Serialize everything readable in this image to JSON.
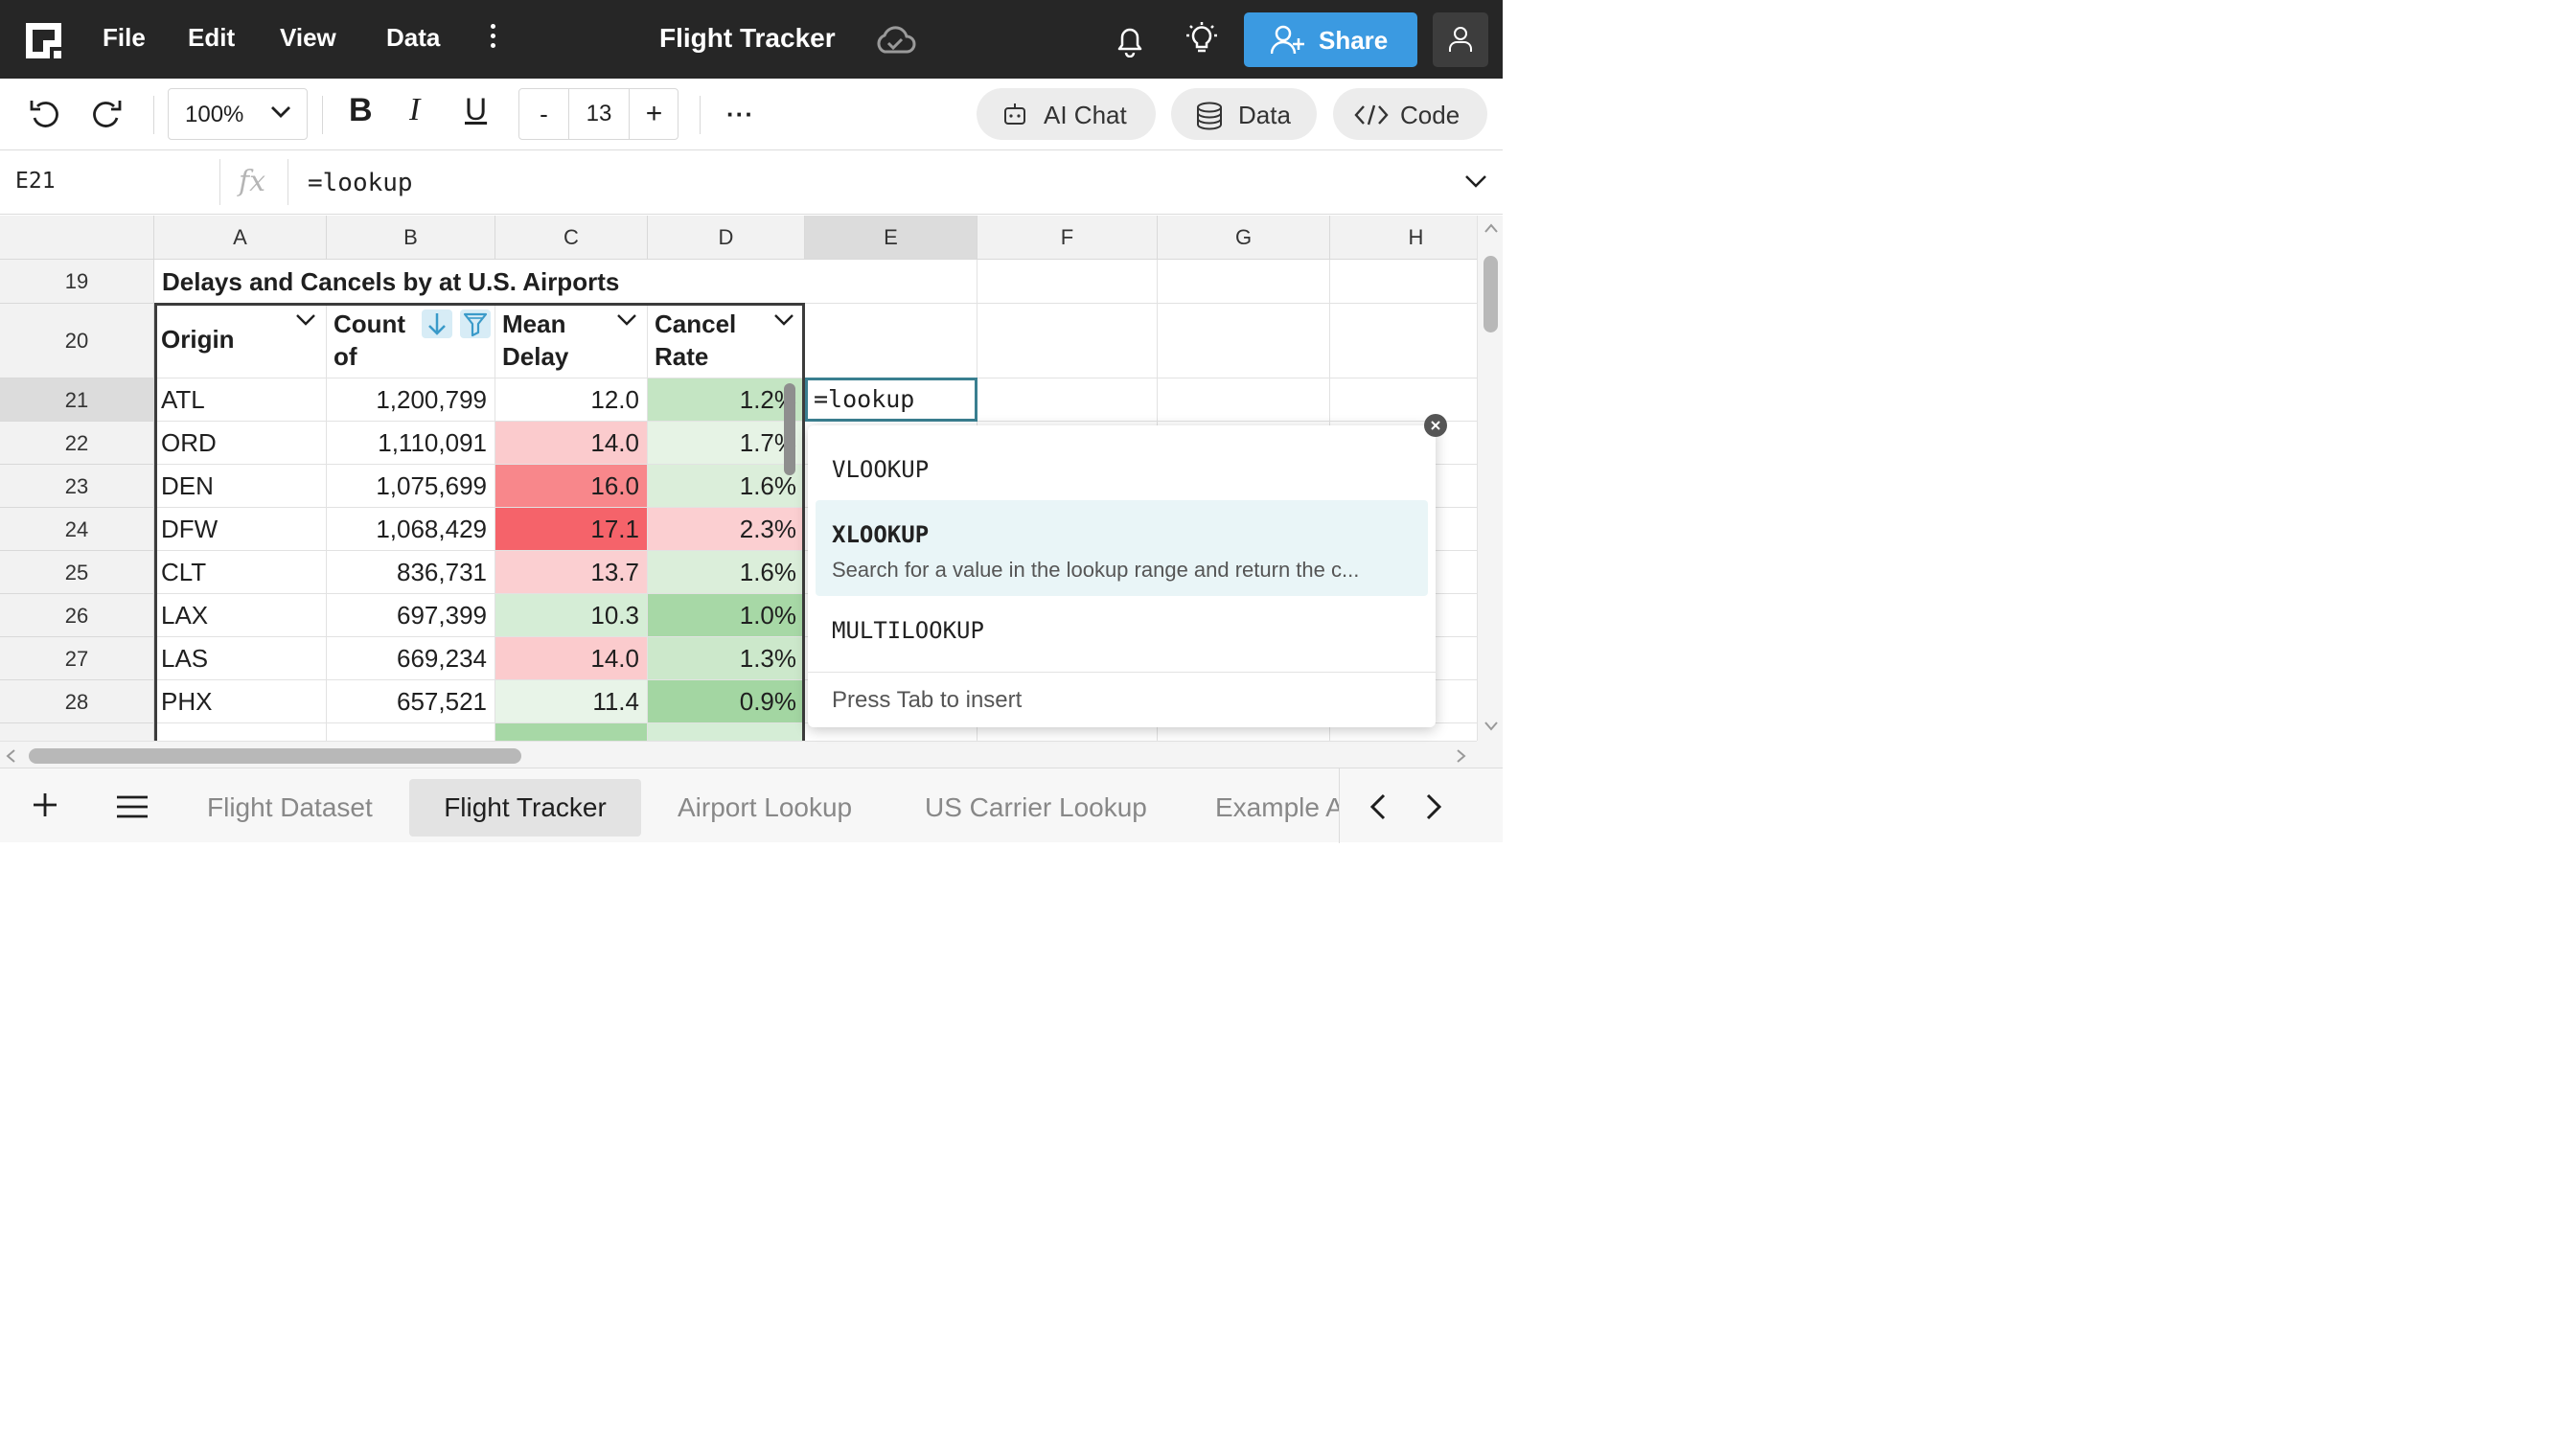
{
  "topbar": {
    "menu": [
      "File",
      "Edit",
      "View",
      "Data"
    ],
    "title": "Flight Tracker",
    "share_label": "Share"
  },
  "toolbar": {
    "zoom": "100%",
    "font_size": "13",
    "minus": "-",
    "plus": "+",
    "bold": "B",
    "italic": "I",
    "underline": "U",
    "more": "···",
    "ai_chat": "AI Chat",
    "data": "Data",
    "code": "Code"
  },
  "formula_bar": {
    "cell_ref": "E21",
    "fx": "fx",
    "formula": "=lookup"
  },
  "grid": {
    "columns": [
      "A",
      "B",
      "C",
      "D",
      "E",
      "F",
      "G",
      "H"
    ],
    "selected_column": "E",
    "selected_row": "21",
    "title_row": "19",
    "title": "Delays and Cancels by at U.S. Airports",
    "header_row": "20",
    "headers": [
      "Origin",
      "Count of",
      "Mean Delay",
      "Cancel Rate"
    ],
    "rows": [
      {
        "row": "21",
        "origin": "ATL",
        "count": "1,200,799",
        "delay": "12.0",
        "cancel": "1.2%"
      },
      {
        "row": "22",
        "origin": "ORD",
        "count": "1,110,091",
        "delay": "14.0",
        "cancel": "1.7%"
      },
      {
        "row": "23",
        "origin": "DEN",
        "count": "1,075,699",
        "delay": "16.0",
        "cancel": "1.6%"
      },
      {
        "row": "24",
        "origin": "DFW",
        "count": "1,068,429",
        "delay": "17.1",
        "cancel": "2.3%"
      },
      {
        "row": "25",
        "origin": "CLT",
        "count": "836,731",
        "delay": "13.7",
        "cancel": "1.6%"
      },
      {
        "row": "26",
        "origin": "LAX",
        "count": "697,399",
        "delay": "10.3",
        "cancel": "1.0%"
      },
      {
        "row": "27",
        "origin": "LAS",
        "count": "669,234",
        "delay": "14.0",
        "cancel": "1.3%"
      },
      {
        "row": "28",
        "origin": "PHX",
        "count": "657,521",
        "delay": "11.4",
        "cancel": "0.9%"
      }
    ],
    "active_cell_value": "=lookup",
    "colors": {
      "delay": [
        "#ffffff",
        "#fbcbcd",
        "#f8878b",
        "#f5636a",
        "#fbcfd1",
        "#d5edd6",
        "#fbcbcd",
        "#e8f4e8"
      ],
      "cancel": [
        "#c4e5c3",
        "#e6f3e5",
        "#dbeeda",
        "#fbcfd1",
        "#dbeeda",
        "#a7d8a6",
        "#cce8cb",
        "#a3d6a2"
      ]
    }
  },
  "autocomplete": {
    "items": [
      "VLOOKUP",
      "XLOOKUP",
      "MULTILOOKUP"
    ],
    "highlighted_desc": "Search for a value in the lookup range and return the c...",
    "footer": "Press Tab to insert"
  },
  "sheets": {
    "tabs": [
      "Flight Dataset",
      "Flight Tracker",
      "Airport Lookup",
      "US Carrier Lookup",
      "Example A"
    ],
    "active": "Flight Tracker"
  }
}
